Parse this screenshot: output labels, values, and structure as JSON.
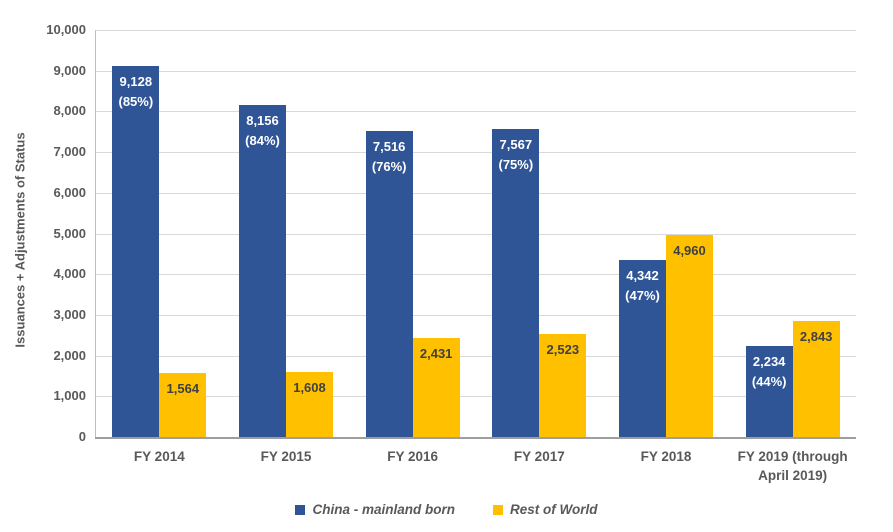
{
  "chart_data": {
    "type": "bar",
    "title": "",
    "xlabel": "",
    "ylabel": "Issuances  + Adjustments of Status",
    "ylim": [
      0,
      10000
    ],
    "grid": true,
    "legend_position": "bottom",
    "ytick_labels": [
      "0",
      "1,000",
      "2,000",
      "3,000",
      "4,000",
      "5,000",
      "6,000",
      "7,000",
      "8,000",
      "9,000",
      "10,000"
    ],
    "categories": [
      "FY 2014",
      "FY 2015",
      "FY 2016",
      "FY 2017",
      "FY 2018",
      "FY 2019 (through\nApril 2019)"
    ],
    "series": [
      {
        "name": "China - mainland born",
        "color": "#2F5597",
        "label_color": "#FFFFFF",
        "values": [
          9128,
          8156,
          7516,
          7567,
          4342,
          2234
        ],
        "labels": [
          "9,128\n(85%)",
          "8,156\n(84%)",
          "7,516\n(76%)",
          "7,567\n(75%)",
          "4,342\n(47%)",
          "2,234\n(44%)"
        ]
      },
      {
        "name": "Rest of World",
        "color": "#FFC000",
        "label_color": "#404040",
        "values": [
          1564,
          1608,
          2431,
          2523,
          4960,
          2843
        ],
        "labels": [
          "1,564",
          "1,608",
          "2,431",
          "2,523",
          "4,960",
          "2,843"
        ]
      }
    ]
  },
  "colors": {
    "gridline": "#d9d9d9",
    "axis_line": "#9e9e9e",
    "tick_text": "#595959"
  }
}
